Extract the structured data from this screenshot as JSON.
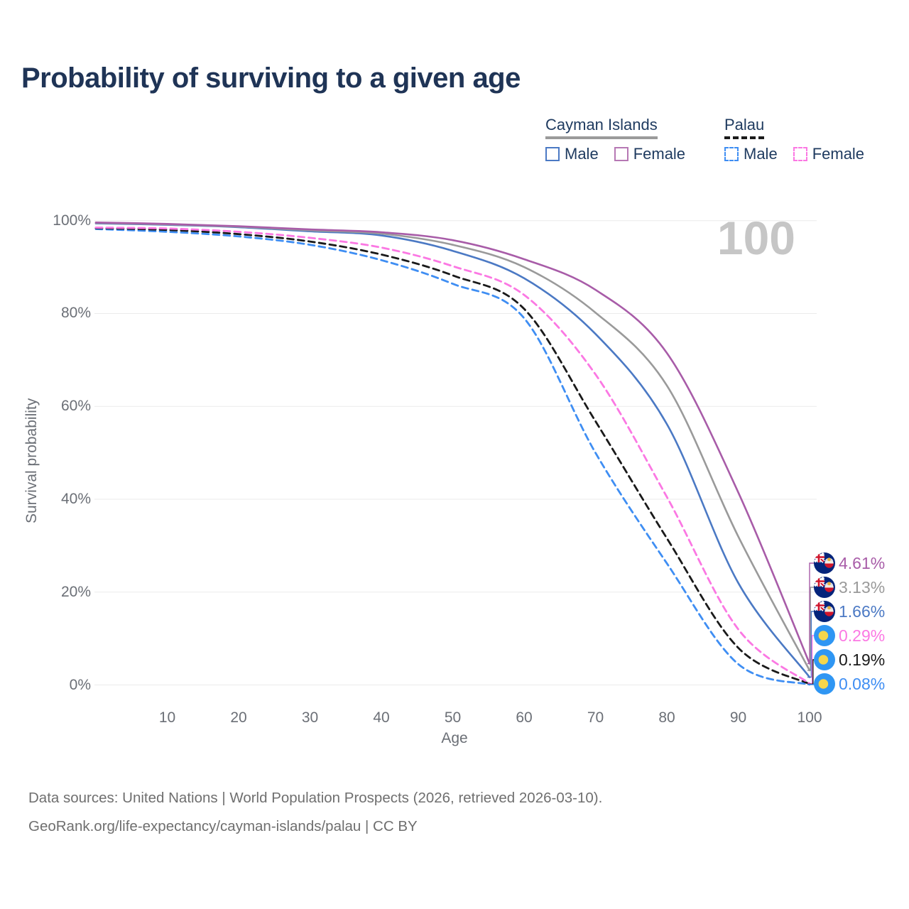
{
  "title": "Probability of surviving to a given age",
  "watermark": "100",
  "legend": {
    "groups": [
      {
        "title": "Cayman Islands",
        "line_style": "solid",
        "underline_color": "#9a9a9a",
        "items": [
          {
            "label": "Male",
            "color": "#4b79c4"
          },
          {
            "label": "Female",
            "color": "#b678b4"
          }
        ]
      },
      {
        "title": "Palau",
        "line_style": "dashed",
        "underline_color": "#1a1a1a",
        "items": [
          {
            "label": "Male",
            "color": "#3f8ef3"
          },
          {
            "label": "Female",
            "color": "#fb78e3"
          }
        ]
      }
    ]
  },
  "chart_data": {
    "type": "line",
    "title": "Probability of surviving to a given age",
    "xlabel": "Age",
    "ylabel": "Survival probability",
    "xlim": [
      0,
      100
    ],
    "ylim": [
      0,
      100
    ],
    "grid": "horizontal",
    "legend_position": "top-right",
    "x": [
      0,
      10,
      20,
      30,
      40,
      50,
      60,
      70,
      80,
      90,
      100
    ],
    "xticks": [
      10,
      20,
      30,
      40,
      50,
      60,
      70,
      80,
      90,
      100
    ],
    "yticks": [
      {
        "value": 0,
        "label": "0%"
      },
      {
        "value": 20,
        "label": "20%"
      },
      {
        "value": 40,
        "label": "40%"
      },
      {
        "value": 60,
        "label": "60%"
      },
      {
        "value": 80,
        "label": "80%"
      },
      {
        "value": 100,
        "label": "100%"
      }
    ],
    "series": [
      {
        "name": "Cayman Islands — Female",
        "country": "cayman-islands",
        "sex": "female",
        "color": "#a85ca8",
        "dashed": false,
        "values": [
          99.6,
          99.3,
          98.8,
          98.1,
          97.5,
          95.8,
          91.7,
          85.1,
          71.5,
          41.5,
          4.61
        ],
        "end_label": "4.61%"
      },
      {
        "name": "Cayman Islands — Both sexes",
        "country": "cayman-islands",
        "sex": "all",
        "color": "#9a9a9a",
        "dashed": false,
        "values": [
          99.5,
          99.2,
          98.7,
          97.9,
          97.2,
          94.8,
          90.0,
          80.2,
          64.5,
          32.0,
          3.13
        ],
        "end_label": "3.13%"
      },
      {
        "name": "Cayman Islands — Male",
        "country": "cayman-islands",
        "sex": "male",
        "color": "#4b79c4",
        "dashed": false,
        "values": [
          99.4,
          99.1,
          98.6,
          97.7,
          96.8,
          93.5,
          87.6,
          75.6,
          56.2,
          22.0,
          1.66
        ],
        "end_label": "1.66%"
      },
      {
        "name": "Palau — Female",
        "country": "palau",
        "sex": "female",
        "color": "#fb78e3",
        "dashed": true,
        "values": [
          98.5,
          98.3,
          97.6,
          96.3,
          94.2,
          90.2,
          84.0,
          66.9,
          40.5,
          12.0,
          0.29
        ],
        "end_label": "0.29%"
      },
      {
        "name": "Palau — Both sexes",
        "country": "palau",
        "sex": "all",
        "color": "#1a1a1a",
        "dashed": true,
        "values": [
          98.4,
          98.0,
          97.1,
          95.5,
          92.7,
          88.2,
          81.0,
          56.8,
          31.6,
          8.0,
          0.19
        ],
        "end_label": "0.19%"
      },
      {
        "name": "Palau — Male",
        "country": "palau",
        "sex": "male",
        "color": "#3f8ef3",
        "dashed": true,
        "values": [
          98.2,
          97.6,
          96.6,
          94.8,
          91.5,
          86.4,
          79.0,
          50.0,
          26.2,
          4.5,
          0.08
        ],
        "end_label": "0.08%"
      }
    ]
  },
  "source": {
    "line1": "Data sources: United Nations | World Population Prospects (2026, retrieved 2026-03-10).",
    "line2": "GeoRank.org/life-expectancy/cayman-islands/palau | CC BY"
  }
}
